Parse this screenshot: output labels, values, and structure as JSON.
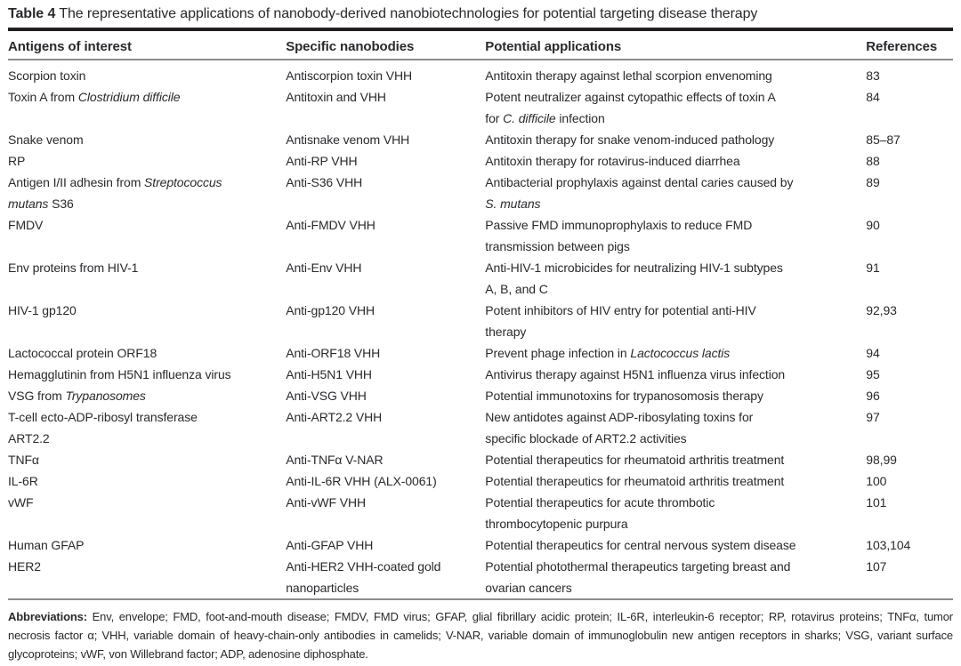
{
  "colors": {
    "text": "#2a292d",
    "rule_dark": "#231f20",
    "rule_gray": "#8a8c8f",
    "background": "#ffffff"
  },
  "table": {
    "label": "Table 4",
    "caption": "The representative applications of nanobody-derived nanobiotechnologies for potential targeting disease therapy",
    "columns": [
      "Antigens of interest",
      "Specific nanobodies",
      "Potential applications",
      "References"
    ],
    "rows": [
      {
        "antigen": "Scorpion toxin",
        "nanobody": "Antiscorpion toxin VHH",
        "application": "Antitoxin therapy against lethal scorpion envenoming",
        "references": "83"
      },
      {
        "antigen": "Toxin A from <i>Clostridium difficile</i>",
        "nanobody": "Antitoxin and VHH",
        "application": "Potent neutralizer against cytopathic effects of toxin A<br>for <i>C. difficile</i> infection",
        "references": "84"
      },
      {
        "antigen": "Snake venom",
        "nanobody": "Antisnake venom VHH",
        "application": "Antitoxin therapy for snake venom-induced pathology",
        "references": "85–87"
      },
      {
        "antigen": "RP",
        "nanobody": "Anti-RP VHH",
        "application": "Antitoxin therapy for rotavirus-induced diarrhea",
        "references": "88"
      },
      {
        "antigen": "Antigen I/II adhesin from <i>Streptococcus</i><br><i>mutans</i> S36",
        "nanobody": "Anti-S36 VHH",
        "application": "Antibacterial prophylaxis against dental caries caused by<br><i>S. mutans</i>",
        "references": "89"
      },
      {
        "antigen": "FMDV",
        "nanobody": "Anti-FMDV VHH",
        "application": "Passive FMD immunoprophylaxis to reduce FMD<br>transmission between pigs",
        "references": "90"
      },
      {
        "antigen": "Env proteins from HIV-1",
        "nanobody": "Anti-Env VHH",
        "application": "Anti-HIV-1 microbicides for neutralizing HIV-1 subtypes<br>A, B, and C",
        "references": "91"
      },
      {
        "antigen": "HIV-1 gp120",
        "nanobody": "Anti-gp120 VHH",
        "application": "Potent inhibitors of HIV entry for potential anti-HIV<br>therapy",
        "references": "92,93"
      },
      {
        "antigen": "Lactococcal protein ORF18",
        "nanobody": "Anti-ORF18 VHH",
        "application": "Prevent phage infection in <i>Lactococcus lactis</i>",
        "references": "94"
      },
      {
        "antigen": "Hemagglutinin from H5N1 influenza virus",
        "nanobody": "Anti-H5N1 VHH",
        "application": "Antivirus therapy against H5N1 influenza virus infection",
        "references": "95"
      },
      {
        "antigen": "VSG from <i>Trypanosomes</i>",
        "nanobody": "Anti-VSG VHH",
        "application": "Potential immunotoxins for trypanosomosis therapy",
        "references": "96"
      },
      {
        "antigen": "T-cell ecto-ADP-ribosyl transferase<br>ART2.2",
        "nanobody": "Anti-ART2.2 VHH",
        "application": "New antidotes against ADP-ribosylating toxins for<br>specific blockade of ART2.2 activities",
        "references": "97"
      },
      {
        "antigen": "TNFα",
        "nanobody": "Anti-TNFα V-NAR",
        "application": "Potential therapeutics for rheumatoid arthritis treatment",
        "references": "98,99"
      },
      {
        "antigen": "IL-6R",
        "nanobody": "Anti-IL-6R VHH (ALX-0061)",
        "application": "Potential therapeutics for rheumatoid arthritis treatment",
        "references": "100"
      },
      {
        "antigen": "vWF",
        "nanobody": "Anti-vWF VHH",
        "application": "Potential therapeutics for acute thrombotic<br>thrombocytopenic purpura",
        "references": "101"
      },
      {
        "antigen": "Human GFAP",
        "nanobody": "Anti-GFAP VHH",
        "application": "Potential therapeutics for central nervous system disease",
        "references": "103,104"
      },
      {
        "antigen": "HER2",
        "nanobody": "Anti-HER2 VHH-coated gold<br>nanoparticles",
        "application": "Potential photothermal therapeutics targeting breast and<br>ovarian cancers",
        "references": "107"
      }
    ]
  },
  "footnote": {
    "label": "Abbreviations:",
    "text": "Env, envelope; FMD, foot-and-mouth disease; FMDV, FMD virus; GFAP, glial fibrillary acidic protein; IL-6R, interleukin-6 receptor; RP, rotavirus proteins; TNFα, tumor necrosis factor α; VHH, variable domain of heavy-chain-only antibodies in camelids; V-NAR, variable domain of immunoglobulin new antigen receptors in sharks; VSG, variant surface glycoproteins; vWF, von Willebrand factor; ADP, adenosine diphosphate."
  }
}
